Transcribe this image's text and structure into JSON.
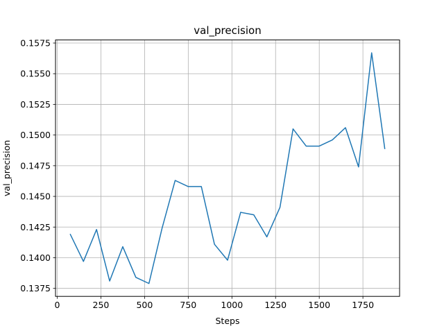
{
  "chart_data": {
    "type": "line",
    "title": "val_precision",
    "xlabel": "Steps",
    "ylabel": "val_precision",
    "xlim": [
      -10,
      1960
    ],
    "ylim": [
      0.13685,
      0.15775
    ],
    "xticks": [
      0,
      250,
      500,
      750,
      1000,
      1250,
      1500,
      1750
    ],
    "yticks": [
      0.1375,
      0.14,
      0.1425,
      0.145,
      0.1475,
      0.15,
      0.1525,
      0.155,
      0.1575
    ],
    "xtick_labels": [
      "0",
      "250",
      "500",
      "750",
      "1000",
      "1250",
      "1500",
      "1750"
    ],
    "ytick_labels": [
      "0.1375",
      "0.1400",
      "0.1425",
      "0.1450",
      "0.1475",
      "0.1500",
      "0.1525",
      "0.1550",
      "0.1575"
    ],
    "grid": true,
    "series": [
      {
        "name": "val_precision",
        "color": "#1f77b4",
        "x": [
          75,
          150,
          225,
          300,
          375,
          450,
          525,
          600,
          675,
          750,
          825,
          900,
          975,
          1050,
          1125,
          1200,
          1275,
          1350,
          1425,
          1500,
          1575,
          1650,
          1725,
          1800,
          1875
        ],
        "values": [
          0.1419,
          0.1397,
          0.1423,
          0.1381,
          0.1409,
          0.1384,
          0.1379,
          0.1424,
          0.1463,
          0.1458,
          0.1458,
          0.1411,
          0.1398,
          0.1437,
          0.1435,
          0.1417,
          0.1441,
          0.1505,
          0.1491,
          0.1491,
          0.1496,
          0.1506,
          0.1474,
          0.1567,
          0.1489
        ]
      }
    ]
  }
}
